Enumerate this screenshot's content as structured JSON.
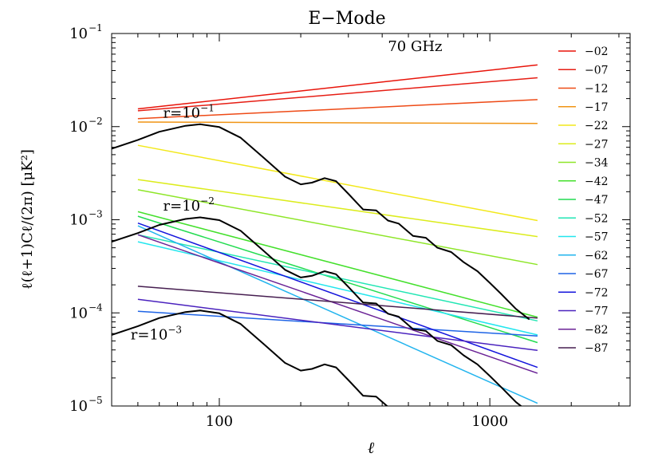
{
  "chart_data": {
    "type": "line",
    "title": "E−Mode",
    "xlabel": "ℓ",
    "ylabel": "ℓ(ℓ+1)Cℓ/(2π)  [μK²]",
    "x_scale": "log",
    "y_scale": "log",
    "xlim": [
      40,
      3300
    ],
    "ylim": [
      1e-05,
      0.1
    ],
    "x_ticks": [
      {
        "value": 100,
        "label": "100"
      },
      {
        "value": 1000,
        "label": "1000"
      }
    ],
    "y_ticks": [
      {
        "value": 0.1,
        "base": "10",
        "exp": "−1"
      },
      {
        "value": 0.01,
        "base": "10",
        "exp": "−2"
      },
      {
        "value": 0.001,
        "base": "10",
        "exp": "−3"
      },
      {
        "value": 0.0001,
        "base": "10",
        "exp": "−4"
      },
      {
        "value": 1e-05,
        "base": "10",
        "exp": "−5"
      }
    ],
    "annotations": [
      {
        "text": "70 GHz",
        "x": 420,
        "y": 0.065
      },
      {
        "text": "r=10",
        "sup": "−1",
        "x": 62,
        "y": 0.0125
      },
      {
        "text": "r=10",
        "sup": "−2",
        "x": 62,
        "y": 0.00125
      },
      {
        "text": "r=10",
        "sup": "−3",
        "x": 47,
        "y": 5.2e-05
      }
    ],
    "legend_position": "right",
    "foreground_series": [
      {
        "name": "−02",
        "color": "#e8140a",
        "x": [
          50,
          1500
        ],
        "y": [
          0.0155,
          0.046
        ]
      },
      {
        "name": "−07",
        "color": "#e61e14",
        "x": [
          50,
          1500
        ],
        "y": [
          0.0148,
          0.0335
        ]
      },
      {
        "name": "−12",
        "color": "#ee4a16",
        "x": [
          50,
          1500
        ],
        "y": [
          0.0122,
          0.0195
        ]
      },
      {
        "name": "−17",
        "color": "#f09414",
        "x": [
          50,
          1500
        ],
        "y": [
          0.0112,
          0.0108
        ]
      },
      {
        "name": "−22",
        "color": "#f2e81a",
        "x": [
          50,
          1500
        ],
        "y": [
          0.0063,
          0.00098
        ]
      },
      {
        "name": "−27",
        "color": "#dcec1c",
        "x": [
          50,
          1500
        ],
        "y": [
          0.0027,
          0.00066
        ]
      },
      {
        "name": "−34",
        "color": "#8ee628",
        "x": [
          50,
          1500
        ],
        "y": [
          0.0021,
          0.00033
        ]
      },
      {
        "name": "−42",
        "color": "#44e02c",
        "x": [
          50,
          1500
        ],
        "y": [
          0.00122,
          9e-05
        ]
      },
      {
        "name": "−47",
        "color": "#22dc50",
        "x": [
          50,
          1500
        ],
        "y": [
          0.00109,
          4.8e-05
        ]
      },
      {
        "name": "−52",
        "color": "#22e6b4",
        "x": [
          50,
          1500
        ],
        "y": [
          0.00069,
          8.2e-05
        ]
      },
      {
        "name": "−57",
        "color": "#22e6ee",
        "x": [
          50,
          1500
        ],
        "y": [
          0.00058,
          5.8e-05
        ]
      },
      {
        "name": "−62",
        "color": "#22b4ee",
        "x": [
          50,
          1500
        ],
        "y": [
          0.00086,
          1.07e-05
        ]
      },
      {
        "name": "−67",
        "color": "#1e64e6",
        "x": [
          50,
          1500
        ],
        "y": [
          0.000104,
          5.65e-05
        ]
      },
      {
        "name": "−72",
        "color": "#1414dc",
        "x": [
          50,
          1500
        ],
        "y": [
          0.00092,
          2.6e-05
        ]
      },
      {
        "name": "−77",
        "color": "#4a22be",
        "x": [
          50,
          1500
        ],
        "y": [
          0.00014,
          3.95e-05
        ]
      },
      {
        "name": "−82",
        "color": "#6a2296",
        "x": [
          50,
          1500
        ],
        "y": [
          0.00069,
          2.25e-05
        ]
      },
      {
        "name": "−87",
        "color": "#461e50",
        "x": [
          50,
          1500
        ],
        "y": [
          0.000193,
          8.8e-05
        ]
      }
    ],
    "cmb_series": [
      {
        "r": "10^-1",
        "color": "#000000",
        "x": [
          40,
          50,
          60,
          75,
          85,
          100,
          120,
          145,
          175,
          200,
          220,
          245,
          270,
          300,
          340,
          380,
          420,
          460,
          520,
          580,
          640,
          720,
          800,
          900,
          1000,
          1100,
          1250,
          1400
        ],
        "y": [
          0.0058,
          0.0072,
          0.0088,
          0.0102,
          0.0106,
          0.0099,
          0.0076,
          0.0047,
          0.0029,
          0.0024,
          0.0025,
          0.0028,
          0.0026,
          0.0019,
          0.00129,
          0.00126,
          0.00098,
          0.00091,
          0.00067,
          0.00064,
          0.0005,
          0.00045,
          0.00035,
          0.00028,
          0.00021,
          0.00016,
          0.00011,
          8.5e-05
        ]
      },
      {
        "r": "10^-2",
        "color": "#000000",
        "x": [
          40,
          50,
          60,
          75,
          85,
          100,
          120,
          145,
          175,
          200,
          220,
          245,
          270,
          300,
          340,
          380,
          420,
          460,
          520,
          580,
          640,
          720,
          800,
          900,
          1000,
          1100,
          1250,
          1400
        ],
        "y": [
          0.00058,
          0.00072,
          0.00088,
          0.00102,
          0.00106,
          0.00099,
          0.00076,
          0.00047,
          0.00029,
          0.00024,
          0.00025,
          0.00028,
          0.00026,
          0.00019,
          0.000129,
          0.000126,
          9.8e-05,
          9.1e-05,
          6.7e-05,
          6.4e-05,
          5e-05,
          4.5e-05,
          3.5e-05,
          2.8e-05,
          2.1e-05,
          1.6e-05,
          1.1e-05,
          8.5e-06
        ]
      },
      {
        "r": "10^-3",
        "color": "#000000",
        "x": [
          40,
          50,
          60,
          75,
          85,
          100,
          120,
          145,
          175,
          200,
          220,
          245,
          270,
          300,
          340,
          380,
          420,
          460,
          520
        ],
        "y": [
          5.8e-05,
          7.2e-05,
          8.8e-05,
          0.000102,
          0.000106,
          9.9e-05,
          7.6e-05,
          4.7e-05,
          2.9e-05,
          2.4e-05,
          2.5e-05,
          2.8e-05,
          2.6e-05,
          1.9e-05,
          1.29e-05,
          1.26e-05,
          9.8e-06,
          9.1e-06,
          6.7e-06
        ]
      }
    ]
  }
}
